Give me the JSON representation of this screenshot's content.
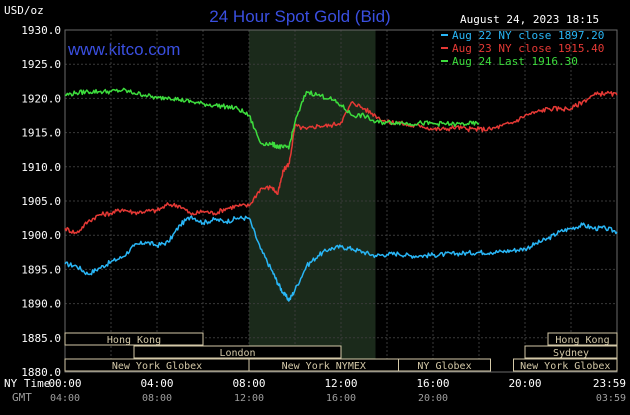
{
  "chart_data": {
    "type": "line",
    "title": "24 Hour Spot Gold (Bid)",
    "brand": "www.kitco.com",
    "y_unit": "USD/oz",
    "timestamp": "August 24, 2023 18:15",
    "ylim": [
      1880,
      1930
    ],
    "y_ticks": [
      "1930.0",
      "1925.0",
      "1920.0",
      "1915.0",
      "1910.0",
      "1905.0",
      "1900.0",
      "1895.0",
      "1890.0",
      "1885.0",
      "1880.0"
    ],
    "x_row_label": "NY Time",
    "x_ticks": [
      "00:00",
      "04:00",
      "08:00",
      "12:00",
      "16:00",
      "20:00",
      "23:59"
    ],
    "gmt_row_label": "GMT",
    "gmt_ticks": [
      "04:00",
      "08:00",
      "12:00",
      "16:00",
      "20:00",
      "03:59"
    ],
    "x_hours": [
      0,
      0.5,
      1,
      1.5,
      2,
      2.5,
      3,
      3.5,
      4,
      4.5,
      5,
      5.5,
      6,
      6.5,
      7,
      7.5,
      8,
      8.5,
      9,
      9.25,
      9.5,
      9.75,
      10,
      10.5,
      11,
      11.5,
      12,
      12.5,
      13,
      13.5,
      14,
      14.5,
      15,
      15.5,
      16,
      16.5,
      17,
      17.5,
      18,
      18.5,
      19,
      19.5,
      20,
      20.5,
      21,
      21.5,
      22,
      22.5,
      23,
      23.5,
      24
    ],
    "series": [
      {
        "name": "Aug 22 NY close 1897.20",
        "color": "#29b6f6",
        "values": [
          1895.8,
          1895.5,
          1894.3,
          1895.2,
          1896.1,
          1896.8,
          1898.4,
          1899.0,
          1898.5,
          1899.0,
          1901.5,
          1902.8,
          1901.8,
          1902.3,
          1902.0,
          1902.5,
          1902.5,
          1898.0,
          1894.8,
          1893.0,
          1891.5,
          1890.5,
          1892.0,
          1895.5,
          1897.0,
          1898.0,
          1898.3,
          1898.0,
          1897.5,
          1897.0,
          1897.2,
          1897.3,
          1897.0,
          1897.0,
          1897.1,
          1897.2,
          1897.3,
          1897.4,
          1897.5,
          1897.5,
          1897.6,
          1897.8,
          1898.0,
          1898.8,
          1899.5,
          1900.5,
          1901.0,
          1901.5,
          1901.0,
          1901.0,
          1900.5
        ]
      },
      {
        "name": "Aug 23 NY close 1915.40",
        "color": "#e53935",
        "values": [
          1901.0,
          1900.3,
          1902.0,
          1903.0,
          1903.2,
          1903.8,
          1903.3,
          1903.5,
          1903.6,
          1904.5,
          1904.3,
          1903.0,
          1903.5,
          1903.2,
          1903.9,
          1904.3,
          1904.3,
          1906.8,
          1907.0,
          1906.0,
          1909.5,
          1910.5,
          1916.0,
          1915.5,
          1916.0,
          1916.0,
          1916.5,
          1919.5,
          1918.5,
          1917.5,
          1916.5,
          1916.5,
          1916.0,
          1916.0,
          1915.5,
          1915.5,
          1915.8,
          1915.5,
          1915.5,
          1915.5,
          1916.0,
          1916.5,
          1917.5,
          1918.0,
          1918.5,
          1918.5,
          1918.5,
          1919.5,
          1920.5,
          1920.8,
          1920.5
        ]
      },
      {
        "name": "Aug 24 Last 1916.30",
        "color": "#3ddc3d",
        "values": [
          1920.5,
          1920.8,
          1921.0,
          1921.0,
          1921.0,
          1921.2,
          1920.8,
          1920.5,
          1920.0,
          1920.2,
          1919.8,
          1919.5,
          1919.2,
          1919.0,
          1918.8,
          1918.5,
          1917.5,
          1913.5,
          1913.3,
          1913.0,
          1912.8,
          1913.0,
          1916.5,
          1921.0,
          1920.5,
          1920.0,
          1919.0,
          1917.5,
          1917.5,
          1916.5,
          1916.5,
          1916.5,
          1916.3,
          1916.4,
          1916.3,
          1916.3,
          1916.2,
          1916.3,
          1916.3
        ]
      }
    ],
    "highlight_hours": [
      8,
      13.5
    ],
    "grid": true,
    "legend_position": "top-right",
    "session_bars": [
      {
        "label": "Hong Kong",
        "start": 0,
        "end": 6,
        "row": 0
      },
      {
        "label": "Hong Kong",
        "start": 21,
        "end": 24,
        "row": 0
      },
      {
        "label": "London",
        "start": 3,
        "end": 12,
        "row": 1
      },
      {
        "label": "Sydney",
        "start": 20,
        "end": 24,
        "row": 1
      },
      {
        "label": "New York Globex",
        "start": 0,
        "end": 8,
        "row": 2
      },
      {
        "label": "New York NYMEX",
        "start": 8,
        "end": 14.5,
        "row": 2
      },
      {
        "label": "NY Globex",
        "start": 14.5,
        "end": 18.5,
        "row": 2
      },
      {
        "label": "New York Globex",
        "start": 19.5,
        "end": 24,
        "row": 2
      }
    ]
  }
}
